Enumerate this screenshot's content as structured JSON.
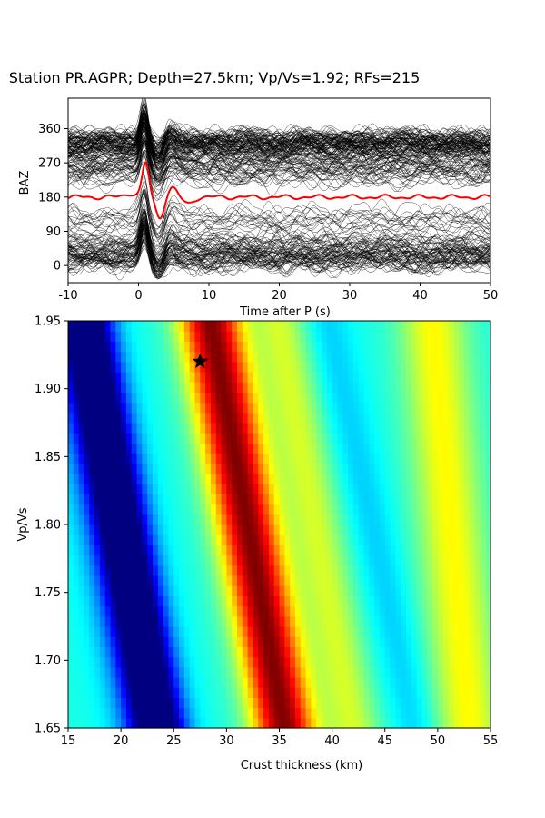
{
  "chart_data": [
    {
      "type": "line",
      "title": "Station PR.AGPR; Depth=27.5km; Vp/Vs=1.92; RFs=215",
      "xlabel": "Time after P (s)",
      "ylabel": "BAZ",
      "xlim": [
        -10,
        50
      ],
      "ylim": [
        -45,
        440
      ],
      "x_ticks": [
        -10,
        0,
        10,
        20,
        30,
        40,
        50
      ],
      "y_ticks": [
        0,
        90,
        180,
        270,
        360
      ],
      "baz_clusters": [
        {
          "baz": 20,
          "count": 45
        },
        {
          "baz": 55,
          "count": 25
        },
        {
          "baz": 120,
          "count": 15
        },
        {
          "baz": 240,
          "count": 20
        },
        {
          "baz": 280,
          "count": 30
        },
        {
          "baz": 320,
          "count": 80
        }
      ],
      "stack_color": "#ff0000",
      "trace_color": "#000000",
      "series": [
        {
          "name": "stack",
          "baseline": 180,
          "peak_time": 1,
          "peak_amplitude": 90
        }
      ]
    },
    {
      "type": "heatmap",
      "xlabel": "Crust thickness (km)",
      "ylabel": "Vp/Vs",
      "xlim": [
        15,
        55
      ],
      "ylim": [
        1.65,
        1.95
      ],
      "x_ticks": [
        15,
        20,
        25,
        30,
        35,
        40,
        45,
        50,
        55
      ],
      "y_ticks": [
        "1.65",
        "1.70",
        "1.75",
        "1.80",
        "1.85",
        "1.90",
        "1.95"
      ],
      "colormap": "jet",
      "best_fit": {
        "thickness": 27.5,
        "vpvs": 1.92
      },
      "marker": "star",
      "ridges": [
        {
          "h_at_165": 23.5,
          "h_at_195": 16.5,
          "width": 2.6,
          "amp": -1.0
        },
        {
          "h_at_165": 35.5,
          "h_at_195": 28.5,
          "width": 3.0,
          "amp": 1.0
        },
        {
          "h_at_165": 53.0,
          "h_at_195": 49.5,
          "width": 3.2,
          "amp": 0.38
        },
        {
          "h_at_165": 48.0,
          "h_at_195": 39.5,
          "width": 2.2,
          "amp": -0.12
        }
      ],
      "background_level": 0.4
    }
  ]
}
